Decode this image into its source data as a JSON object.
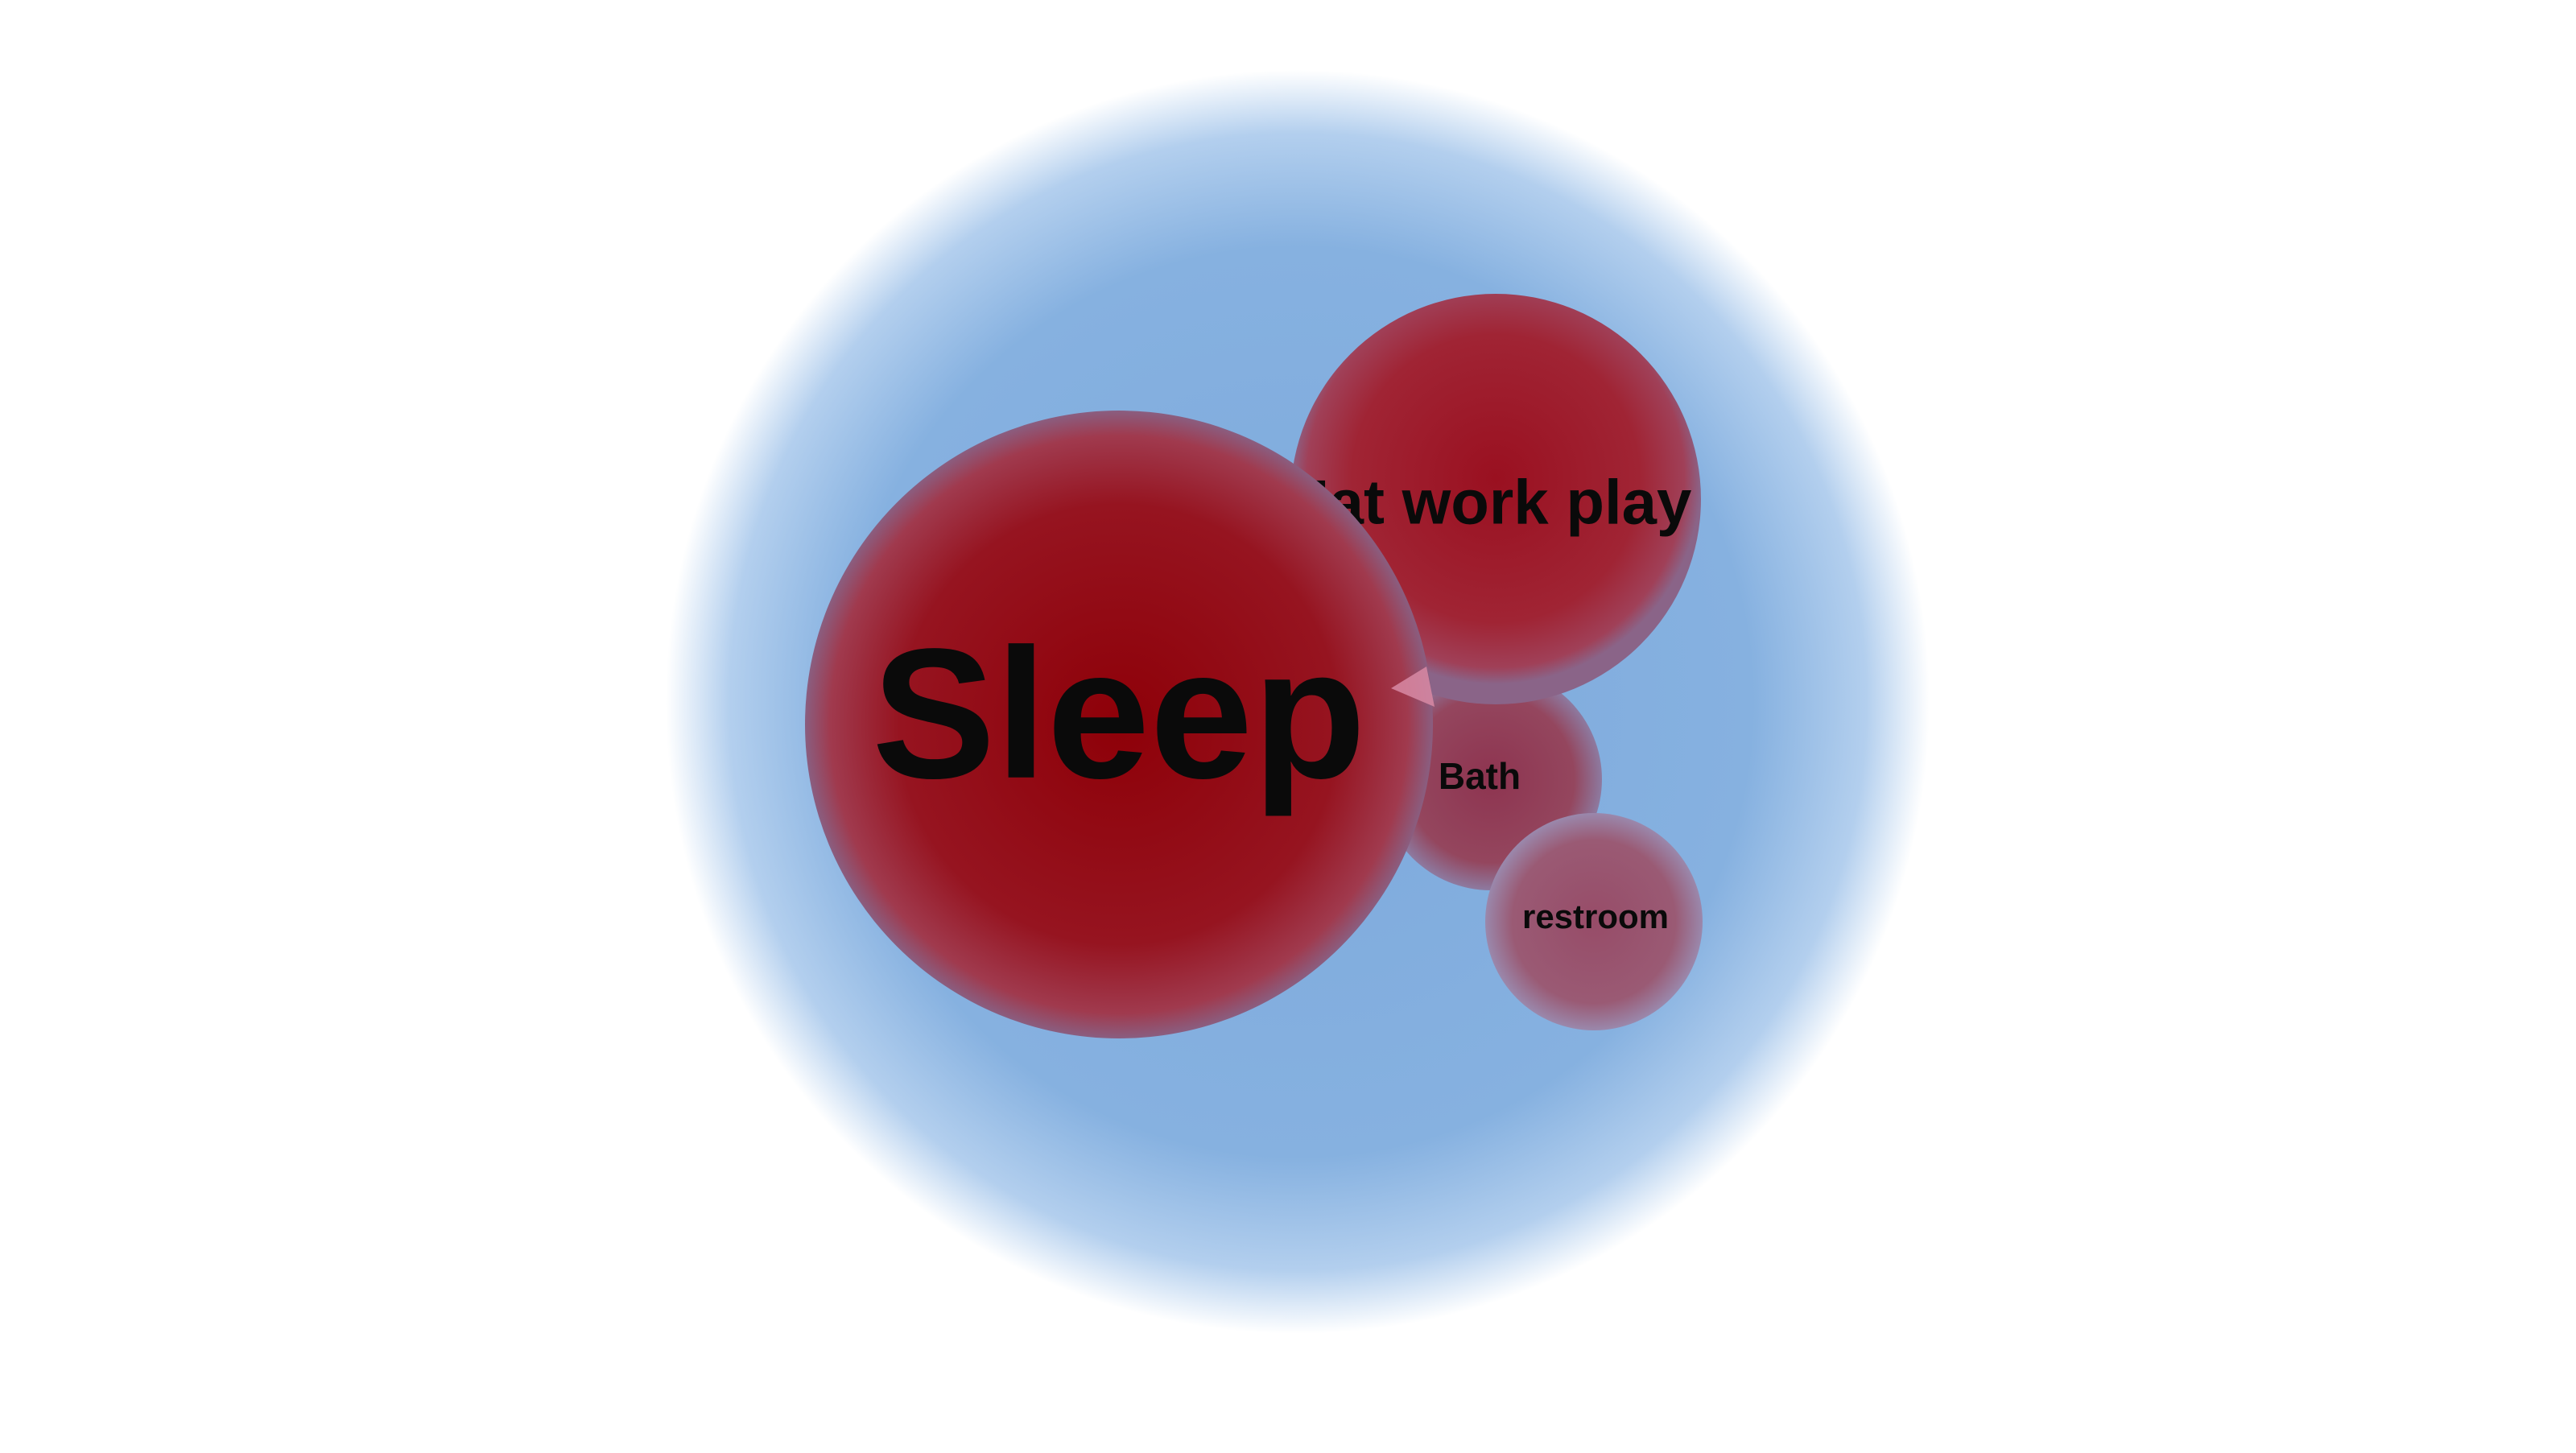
{
  "diagram": {
    "outer_bubble": {
      "color": "#7fa8d9"
    },
    "bubbles": [
      {
        "id": "sleep",
        "label": "Sleep",
        "color": "#8e0008"
      },
      {
        "id": "eat-work-play",
        "label": "Eat work play",
        "color": "#9a1e2a"
      },
      {
        "id": "bath",
        "label": "Bath",
        "color": "#8e3a55"
      },
      {
        "id": "restroom",
        "label": "restroom",
        "color": "#94506e"
      }
    ]
  }
}
